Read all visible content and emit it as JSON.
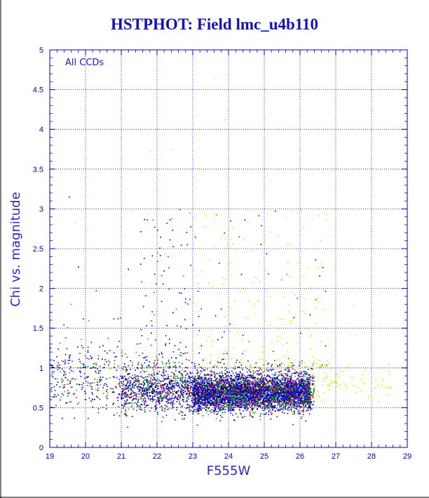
{
  "chart_data": {
    "type": "scatter",
    "title": "HSTPHOT: Field lmc_u4b110",
    "xlabel": "F555W",
    "ylabel": "Chi vs. magnitude",
    "annotation": "All CCDs",
    "xlim": [
      19,
      29
    ],
    "ylim": [
      0,
      5
    ],
    "x_ticks": [
      "19",
      "20",
      "21",
      "22",
      "23",
      "24",
      "25",
      "26",
      "27",
      "28",
      "29"
    ],
    "y_ticks": [
      "0",
      "0.5",
      "1",
      "1.5",
      "2",
      "2.5",
      "3",
      "3.5",
      "4",
      "4.5",
      "5"
    ],
    "grid": true,
    "series_colors": {
      "ccd_blue": "#0000ff",
      "ccd_green": "#00c800",
      "ccd_red": "#e00000",
      "ccd_black": "#000000",
      "ccd_yellow": "#e8e800"
    },
    "distribution": {
      "main_body": {
        "x_range": [
          21,
          26.4
        ],
        "y_center": 0.72,
        "y_spread": 0.14
      },
      "dense_core": {
        "x_range": [
          23,
          26.3
        ],
        "y_center": 0.68
      },
      "bright_sparse": {
        "x_range": [
          19,
          21
        ],
        "y_center": 0.85
      },
      "faint_tail_yellow": {
        "x_range": [
          26.3,
          28.6
        ],
        "y_center": 0.8
      },
      "high_chi_outliers": {
        "x_range": [
          19.5,
          27
        ],
        "y_range": [
          1.0,
          4.7
        ]
      }
    },
    "sample_points": [
      {
        "x": 19.55,
        "y": 3.15,
        "color": "ccd_black"
      },
      {
        "x": 19.7,
        "y": 2.82,
        "color": "ccd_yellow"
      },
      {
        "x": 19.8,
        "y": 2.27,
        "color": "ccd_black"
      },
      {
        "x": 20.3,
        "y": 1.97,
        "color": "ccd_red"
      },
      {
        "x": 19.6,
        "y": 1.8,
        "color": "ccd_green"
      },
      {
        "x": 21.2,
        "y": 2.24,
        "color": "ccd_black"
      },
      {
        "x": 21.8,
        "y": 3.72,
        "color": "ccd_yellow"
      },
      {
        "x": 22.4,
        "y": 3.75,
        "color": "ccd_yellow"
      },
      {
        "x": 23.6,
        "y": 4.65,
        "color": "ccd_yellow"
      },
      {
        "x": 23.9,
        "y": 4.12,
        "color": "ccd_yellow"
      },
      {
        "x": 24.3,
        "y": 2.65,
        "color": "ccd_red"
      },
      {
        "x": 22.2,
        "y": 2.22,
        "color": "ccd_black"
      },
      {
        "x": 27.5,
        "y": 1.78,
        "color": "ccd_yellow"
      },
      {
        "x": 28.5,
        "y": 0.92,
        "color": "ccd_yellow"
      }
    ]
  }
}
